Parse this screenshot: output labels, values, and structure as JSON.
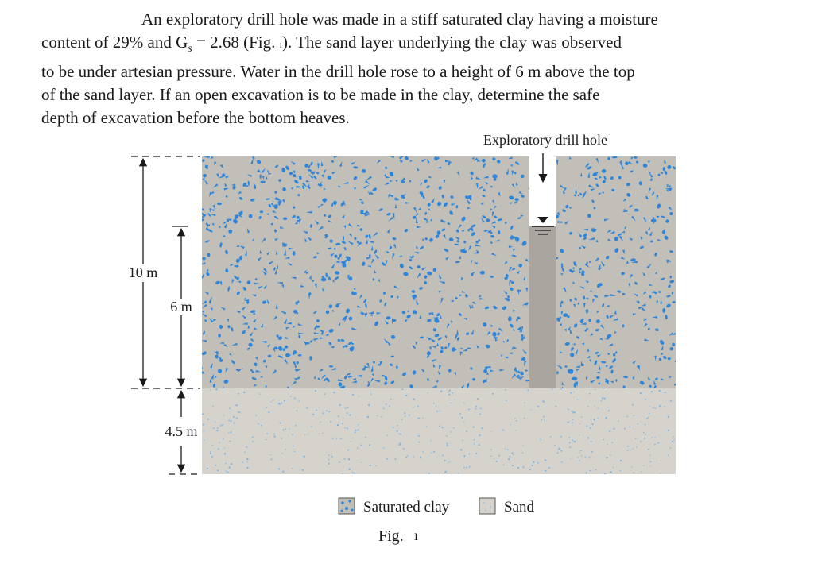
{
  "problem": {
    "text_lines": [
      "An exploratory drill hole was made in a stiff saturated clay having a moisture",
      "content of 29% and G",
      "s",
      " = 2.68 (Fig. ",
      "). The sand layer underlying the clay was observed",
      "to be under artesian pressure. Water in the drill hole rose to a height of 6 m above the top",
      "of the sand layer. If an open excavation is to be made in the clay, determine the safe",
      "depth of excavation before the bottom heaves."
    ]
  },
  "figure": {
    "drill_hole_label": "Exploratory drill hole",
    "dims": {
      "clay_thickness": "10 m",
      "water_height": "6 m",
      "sand_thickness": "4.5 m"
    },
    "legend": {
      "clay": "Saturated clay",
      "sand": "Sand"
    },
    "caption": "Fig. ",
    "colors": {
      "clay_fill": "#c2bfb8",
      "clay_speck": "#2f86d8",
      "sand_fill": "#d6d3cd",
      "sand_dot": "#7fb4de",
      "water_column": "#aaa69f",
      "line": "#1a1a1a"
    }
  }
}
